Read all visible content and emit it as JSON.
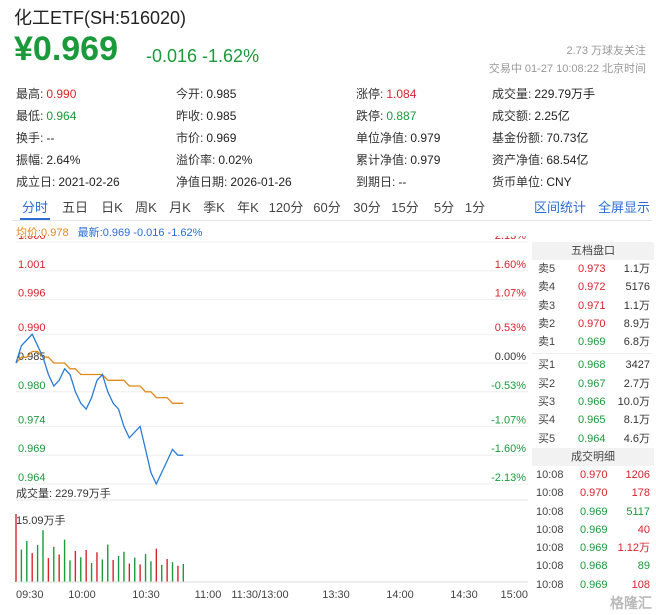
{
  "header": {
    "title": "化工ETF(SH:516020)",
    "price": "¥0.969",
    "change": "-0.016 -1.62%",
    "followers": "2.73 万球友关注",
    "status": "交易中 01-27 10:08:22 北京时间"
  },
  "stats": [
    {
      "k": "最高:",
      "v": "0.990",
      "tone": "red"
    },
    {
      "k": "今开:",
      "v": "0.985",
      "tone": ""
    },
    {
      "k": "涨停:",
      "v": "1.084",
      "tone": "red"
    },
    {
      "k": "成交量:",
      "v": "229.79万手",
      "tone": ""
    },
    {
      "k": "最低:",
      "v": "0.964",
      "tone": "green"
    },
    {
      "k": "昨收:",
      "v": "0.985",
      "tone": ""
    },
    {
      "k": "跌停:",
      "v": "0.887",
      "tone": "green"
    },
    {
      "k": "成交额:",
      "v": "2.25亿",
      "tone": ""
    },
    {
      "k": "换手:",
      "v": "--",
      "tone": ""
    },
    {
      "k": "市价:",
      "v": "0.969",
      "tone": ""
    },
    {
      "k": "单位净值:",
      "v": "0.979",
      "tone": ""
    },
    {
      "k": "基金份额:",
      "v": "70.73亿",
      "tone": ""
    },
    {
      "k": "振幅:",
      "v": "2.64%",
      "tone": ""
    },
    {
      "k": "溢价率:",
      "v": "0.02%",
      "tone": ""
    },
    {
      "k": "累计净值:",
      "v": "0.979",
      "tone": ""
    },
    {
      "k": "资产净值:",
      "v": "68.54亿",
      "tone": ""
    },
    {
      "k": "成立日:",
      "v": "2021-02-26",
      "tone": ""
    },
    {
      "k": "净值日期:",
      "v": "2026-01-26",
      "tone": ""
    },
    {
      "k": "到期日:",
      "v": "--",
      "tone": ""
    },
    {
      "k": "货币单位:",
      "v": "CNY",
      "tone": ""
    }
  ],
  "tabs": [
    "分时",
    "五日",
    "日K",
    "周K",
    "月K",
    "季K",
    "年K",
    "120分",
    "60分",
    "30分",
    "15分",
    "5分",
    "1分"
  ],
  "tab_links": [
    "区间统计",
    "全屏显示"
  ],
  "active_tab": "分时",
  "legend": {
    "avg": "均价:0.978",
    "latest": "最新:0.969 -0.016 -1.62%"
  },
  "volume_label": "成交量: 229.79万手",
  "volume_max_label": "15.09万手",
  "order_book": {
    "title": "五档盘口",
    "asks": [
      {
        "label": "卖5",
        "price": "0.973",
        "vol": "1.1万",
        "tone": "red"
      },
      {
        "label": "卖4",
        "price": "0.972",
        "vol": "5176",
        "tone": "red"
      },
      {
        "label": "卖3",
        "price": "0.971",
        "vol": "1.1万",
        "tone": "red"
      },
      {
        "label": "卖2",
        "price": "0.970",
        "vol": "8.9万",
        "tone": "red"
      },
      {
        "label": "卖1",
        "price": "0.969",
        "vol": "6.8万",
        "tone": "green"
      }
    ],
    "bids": [
      {
        "label": "买1",
        "price": "0.968",
        "vol": "3427",
        "tone": "green"
      },
      {
        "label": "买2",
        "price": "0.967",
        "vol": "2.7万",
        "tone": "green"
      },
      {
        "label": "买3",
        "price": "0.966",
        "vol": "10.0万",
        "tone": "green"
      },
      {
        "label": "买4",
        "price": "0.965",
        "vol": "8.1万",
        "tone": "green"
      },
      {
        "label": "买5",
        "price": "0.964",
        "vol": "4.6万",
        "tone": "green"
      }
    ],
    "trades_title": "成交明细",
    "trades": [
      {
        "t": "10:08",
        "price": "0.970",
        "vol": "1206",
        "ptone": "red",
        "vtone": "red"
      },
      {
        "t": "10:08",
        "price": "0.970",
        "vol": "178",
        "ptone": "red",
        "vtone": "red"
      },
      {
        "t": "10:08",
        "price": "0.969",
        "vol": "5117",
        "ptone": "green",
        "vtone": "green"
      },
      {
        "t": "10:08",
        "price": "0.969",
        "vol": "40",
        "ptone": "green",
        "vtone": "red"
      },
      {
        "t": "10:08",
        "price": "0.969",
        "vol": "1.12万",
        "ptone": "green",
        "vtone": "red"
      },
      {
        "t": "10:08",
        "price": "0.968",
        "vol": "89",
        "ptone": "green",
        "vtone": "green"
      },
      {
        "t": "10:08",
        "price": "0.969",
        "vol": "108",
        "ptone": "green",
        "vtone": "red"
      }
    ]
  },
  "watermark": "格隆汇",
  "chart_data": {
    "type": "line",
    "y_ticks_price": [
      "1.006",
      "1.001",
      "0.996",
      "0.990",
      "0.985",
      "0.980",
      "0.974",
      "0.969",
      "0.964"
    ],
    "y_ticks_pct": [
      "2.13%",
      "1.60%",
      "1.07%",
      "0.53%",
      "0.00%",
      "-0.53%",
      "-1.07%",
      "-1.60%",
      "-2.13%"
    ],
    "x_ticks": [
      "09:30",
      "10:00",
      "10:30",
      "11:00",
      "11:30/13:00",
      "13:30",
      "14:00",
      "14:30",
      "15:00"
    ],
    "ylim": [
      0.964,
      1.006
    ],
    "prev_close": 0.985,
    "series": [
      {
        "name": "最新",
        "color": "#2a7bd4",
        "values": [
          0.985,
          0.988,
          0.989,
          0.99,
          0.988,
          0.986,
          0.983,
          0.981,
          0.982,
          0.984,
          0.983,
          0.98,
          0.978,
          0.977,
          0.979,
          0.982,
          0.983,
          0.98,
          0.978,
          0.977,
          0.974,
          0.972,
          0.973,
          0.974,
          0.97,
          0.966,
          0.964,
          0.966,
          0.968,
          0.97,
          0.969,
          0.969
        ]
      },
      {
        "name": "均价",
        "color": "#e08a1a",
        "values": [
          0.985,
          0.986,
          0.986,
          0.987,
          0.987,
          0.986,
          0.986,
          0.985,
          0.985,
          0.985,
          0.984,
          0.984,
          0.983,
          0.983,
          0.983,
          0.983,
          0.983,
          0.982,
          0.982,
          0.982,
          0.982,
          0.981,
          0.981,
          0.981,
          0.98,
          0.98,
          0.979,
          0.979,
          0.979,
          0.978,
          0.978,
          0.978
        ]
      }
    ],
    "volume": [
      15.09,
      7.2,
      9.1,
      6.4,
      8.2,
      11.5,
      5.3,
      7.8,
      6.1,
      9.4,
      4.8,
      6.9,
      5.5,
      7.1,
      4.2,
      6.6,
      5.0,
      8.3,
      4.9,
      5.8,
      6.7,
      4.1,
      5.4,
      3.9,
      6.2,
      4.6,
      7.4,
      3.8,
      5.1,
      4.4,
      3.6,
      4.0
    ],
    "volume_tones": [
      "r",
      "g",
      "g",
      "r",
      "g",
      "g",
      "r",
      "g",
      "r",
      "g",
      "g",
      "r",
      "g",
      "r",
      "g",
      "r",
      "g",
      "g",
      "r",
      "g",
      "g",
      "r",
      "g",
      "r",
      "g",
      "g",
      "r",
      "g",
      "r",
      "g",
      "r",
      "g"
    ]
  }
}
